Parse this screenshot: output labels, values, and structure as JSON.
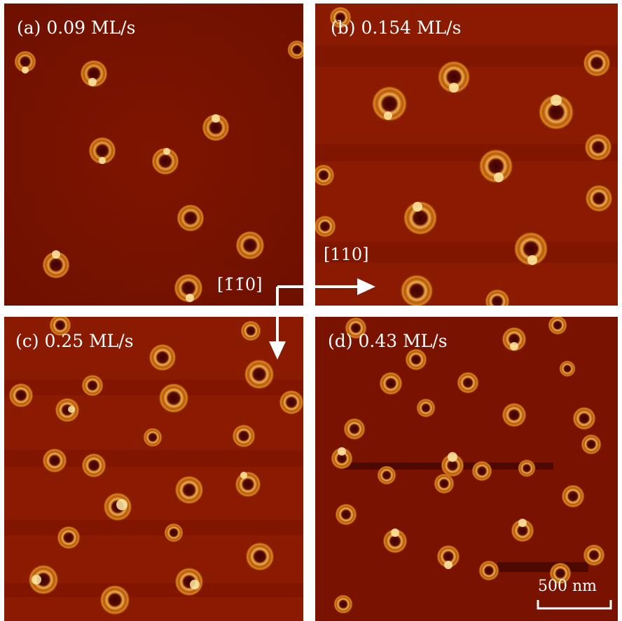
{
  "panels": [
    {
      "id": "a",
      "label": "(a) 0.09 ML/s"
    },
    {
      "id": "b",
      "label": "(b) 0.154 ML/s"
    },
    {
      "id": "c",
      "label": "(c) 0.25 ML/s"
    },
    {
      "id": "d",
      "label": "(d) 0.43 ML/s"
    }
  ],
  "directions": {
    "horizontal": "[110]",
    "vertical": "[1̄1̄0]"
  },
  "scale_bar": {
    "label": "500 nm"
  },
  "colors": {
    "background": "#7a1200",
    "island_bright": "#ffe9a6",
    "island_ring": "#d98a1f",
    "hole": "#3a0400"
  }
}
